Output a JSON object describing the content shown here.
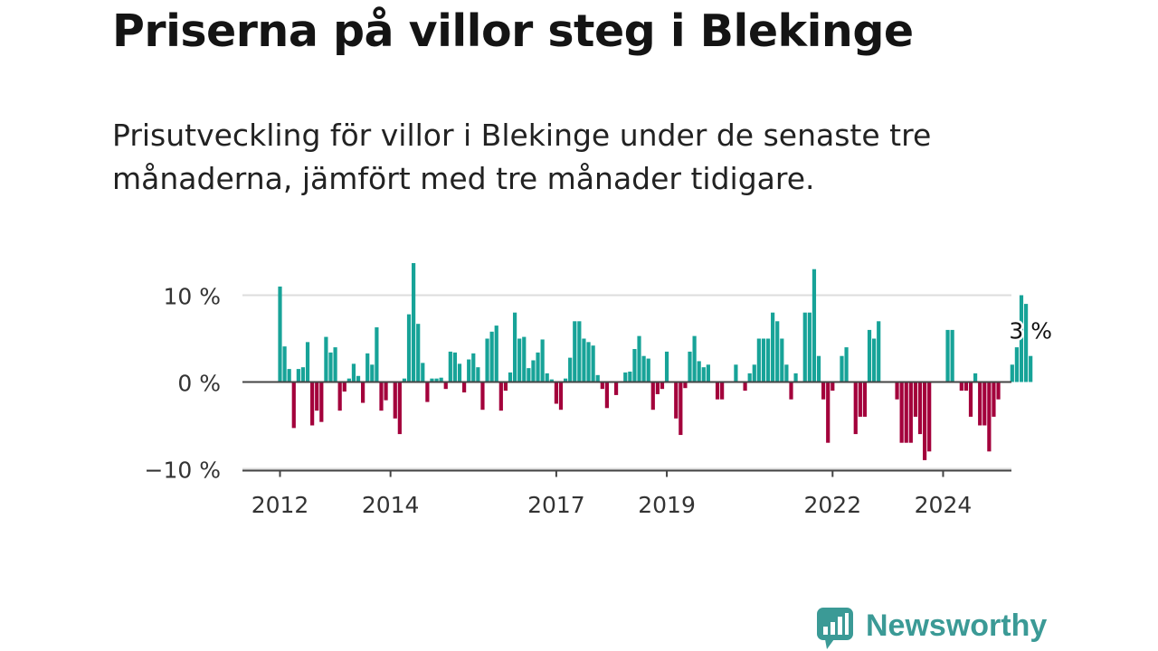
{
  "title": "Priserna på villor steg i Blekinge",
  "subtitle": "Prisutveckling för villor i Blekinge under de senaste tre månaderna, jämfört med tre månader tidigare.",
  "logo": {
    "text": "Newsworthy",
    "icon": "bar-chart-speech-bubble-icon"
  },
  "colors": {
    "positive": "#17a398",
    "negative": "#a3003b",
    "grid": "#dddddd",
    "zero_line": "#444444",
    "brand": "#3b9a96"
  },
  "chart_data": {
    "type": "bar",
    "x_start": "2012-01",
    "ylim": [
      -10,
      14
    ],
    "y_ticks": [
      {
        "value": 10,
        "label": "10 %"
      },
      {
        "value": 0,
        "label": "0 %"
      },
      {
        "value": -10,
        "label": "−10 %"
      }
    ],
    "x_ticks": [
      {
        "date": "2012-01",
        "label": "2012"
      },
      {
        "date": "2014-01",
        "label": "2014"
      },
      {
        "date": "2017-01",
        "label": "2017"
      },
      {
        "date": "2019-01",
        "label": "2019"
      },
      {
        "date": "2022-01",
        "label": "2022"
      },
      {
        "date": "2024-01",
        "label": "2024"
      }
    ],
    "annotation": "3 %",
    "values": [
      11.0,
      4.1,
      1.5,
      -5.3,
      1.5,
      1.7,
      4.6,
      -5.0,
      -3.3,
      -4.6,
      5.2,
      3.4,
      4.0,
      -3.3,
      -1.1,
      0.4,
      2.1,
      0.7,
      -2.4,
      3.3,
      2.0,
      6.3,
      -3.3,
      -2.1,
      0.0,
      -4.2,
      -6.0,
      0.4,
      7.8,
      13.7,
      6.7,
      2.2,
      -2.3,
      0.4,
      0.4,
      0.5,
      -0.8,
      3.5,
      3.4,
      2.1,
      -1.2,
      2.6,
      3.3,
      1.7,
      -3.2,
      5.0,
      5.8,
      6.5,
      -3.3,
      -1.0,
      1.1,
      8.0,
      5.0,
      5.2,
      1.6,
      2.5,
      3.4,
      4.9,
      1.0,
      0.3,
      -2.5,
      -3.2,
      0.4,
      2.8,
      7.0,
      7.0,
      5.0,
      4.6,
      4.2,
      0.8,
      -0.8,
      -3.0,
      0.0,
      -1.5,
      0.0,
      1.1,
      1.2,
      3.8,
      5.3,
      3.0,
      2.7,
      -3.2,
      -1.4,
      -0.8,
      3.5,
      0.0,
      -4.2,
      -6.1,
      -0.7,
      3.5,
      5.3,
      2.4,
      1.7,
      2.0,
      0.0,
      -2.0,
      -2.0,
      0.0,
      0.0,
      2.0,
      0.0,
      -1.0,
      1.0,
      2.0,
      5.0,
      5.0,
      5.0,
      8.0,
      7.0,
      5.0,
      2.0,
      -2.0,
      1.0,
      0.0,
      8.0,
      8.0,
      13.0,
      3.0,
      -2.0,
      -7.0,
      -1.0,
      0.0,
      3.0,
      4.0,
      0.0,
      -6.0,
      -4.0,
      -4.0,
      6.0,
      5.0,
      7.0,
      0.0,
      0.0,
      0.0,
      -2.0,
      -7.0,
      -7.0,
      -7.0,
      -4.0,
      -6.0,
      -9.0,
      -8.0,
      0.0,
      0.0,
      0.0,
      6.0,
      6.0,
      0.0,
      -1.0,
      -1.0,
      -4.0,
      1.0,
      -5.0,
      -5.0,
      -8.0,
      -4.0,
      -2.0,
      0.0,
      0.0,
      2.0,
      4.0,
      10.0,
      9.0,
      3.0
    ]
  }
}
